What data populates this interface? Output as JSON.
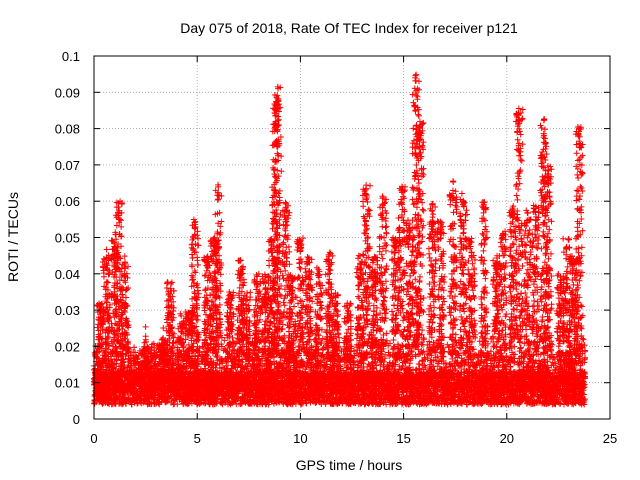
{
  "chart_data": {
    "type": "scatter",
    "title": "Day 075 of 2018, Rate Of TEC Index for receiver p121",
    "xlabel": "GPS time / hours",
    "ylabel": "ROTI / TECUs",
    "xlim": [
      0,
      25
    ],
    "ylim": [
      0,
      0.1
    ],
    "grid": true,
    "marker": "+",
    "series_color": "#ff0000",
    "x_ticks": [
      {
        "value": 0,
        "label": "0"
      },
      {
        "value": 5,
        "label": "5"
      },
      {
        "value": 10,
        "label": "10"
      },
      {
        "value": 15,
        "label": "15"
      },
      {
        "value": 20,
        "label": "20"
      },
      {
        "value": 25,
        "label": "25"
      }
    ],
    "y_ticks": [
      {
        "value": 0,
        "label": "0"
      },
      {
        "value": 0.01,
        "label": "0.01"
      },
      {
        "value": 0.02,
        "label": "0.02"
      },
      {
        "value": 0.03,
        "label": "0.03"
      },
      {
        "value": 0.04,
        "label": "0.04"
      },
      {
        "value": 0.05,
        "label": "0.05"
      },
      {
        "value": 0.06,
        "label": "0.06"
      },
      {
        "value": 0.07,
        "label": "0.07"
      },
      {
        "value": 0.08,
        "label": "0.08"
      },
      {
        "value": 0.09,
        "label": "0.09"
      },
      {
        "value": 0.1,
        "label": "0.1"
      }
    ],
    "data_extent": {
      "x_min": 0,
      "x_max": 23.8
    },
    "peaks": [
      {
        "x": 0.3,
        "y": 0.032
      },
      {
        "x": 0.6,
        "y": 0.047
      },
      {
        "x": 1.0,
        "y": 0.05
      },
      {
        "x": 1.2,
        "y": 0.06
      },
      {
        "x": 1.5,
        "y": 0.045
      },
      {
        "x": 2.5,
        "y": 0.02
      },
      {
        "x": 3.3,
        "y": 0.022
      },
      {
        "x": 3.7,
        "y": 0.038
      },
      {
        "x": 4.2,
        "y": 0.027
      },
      {
        "x": 4.6,
        "y": 0.03
      },
      {
        "x": 4.9,
        "y": 0.055
      },
      {
        "x": 5.5,
        "y": 0.045
      },
      {
        "x": 5.8,
        "y": 0.05
      },
      {
        "x": 6.0,
        "y": 0.065
      },
      {
        "x": 6.6,
        "y": 0.035
      },
      {
        "x": 7.1,
        "y": 0.044
      },
      {
        "x": 7.4,
        "y": 0.035
      },
      {
        "x": 7.9,
        "y": 0.04
      },
      {
        "x": 8.3,
        "y": 0.04
      },
      {
        "x": 8.6,
        "y": 0.05
      },
      {
        "x": 8.8,
        "y": 0.088
      },
      {
        "x": 8.9,
        "y": 0.092
      },
      {
        "x": 9.3,
        "y": 0.06
      },
      {
        "x": 9.6,
        "y": 0.04
      },
      {
        "x": 10.0,
        "y": 0.05
      },
      {
        "x": 10.4,
        "y": 0.045
      },
      {
        "x": 10.9,
        "y": 0.042
      },
      {
        "x": 11.4,
        "y": 0.046
      },
      {
        "x": 11.7,
        "y": 0.035
      },
      {
        "x": 12.3,
        "y": 0.032
      },
      {
        "x": 12.9,
        "y": 0.045
      },
      {
        "x": 13.2,
        "y": 0.065
      },
      {
        "x": 13.6,
        "y": 0.045
      },
      {
        "x": 14.0,
        "y": 0.062
      },
      {
        "x": 14.6,
        "y": 0.05
      },
      {
        "x": 14.9,
        "y": 0.064
      },
      {
        "x": 15.3,
        "y": 0.055
      },
      {
        "x": 15.6,
        "y": 0.095
      },
      {
        "x": 15.8,
        "y": 0.082
      },
      {
        "x": 16.4,
        "y": 0.06
      },
      {
        "x": 16.8,
        "y": 0.055
      },
      {
        "x": 17.4,
        "y": 0.066
      },
      {
        "x": 17.9,
        "y": 0.063
      },
      {
        "x": 18.3,
        "y": 0.05
      },
      {
        "x": 18.9,
        "y": 0.06
      },
      {
        "x": 19.5,
        "y": 0.045
      },
      {
        "x": 19.8,
        "y": 0.052
      },
      {
        "x": 20.3,
        "y": 0.06
      },
      {
        "x": 20.6,
        "y": 0.086
      },
      {
        "x": 21.0,
        "y": 0.058
      },
      {
        "x": 21.4,
        "y": 0.06
      },
      {
        "x": 21.8,
        "y": 0.083
      },
      {
        "x": 22.0,
        "y": 0.07
      },
      {
        "x": 22.6,
        "y": 0.04
      },
      {
        "x": 22.9,
        "y": 0.05
      },
      {
        "x": 23.2,
        "y": 0.045
      },
      {
        "x": 23.5,
        "y": 0.081
      }
    ]
  }
}
